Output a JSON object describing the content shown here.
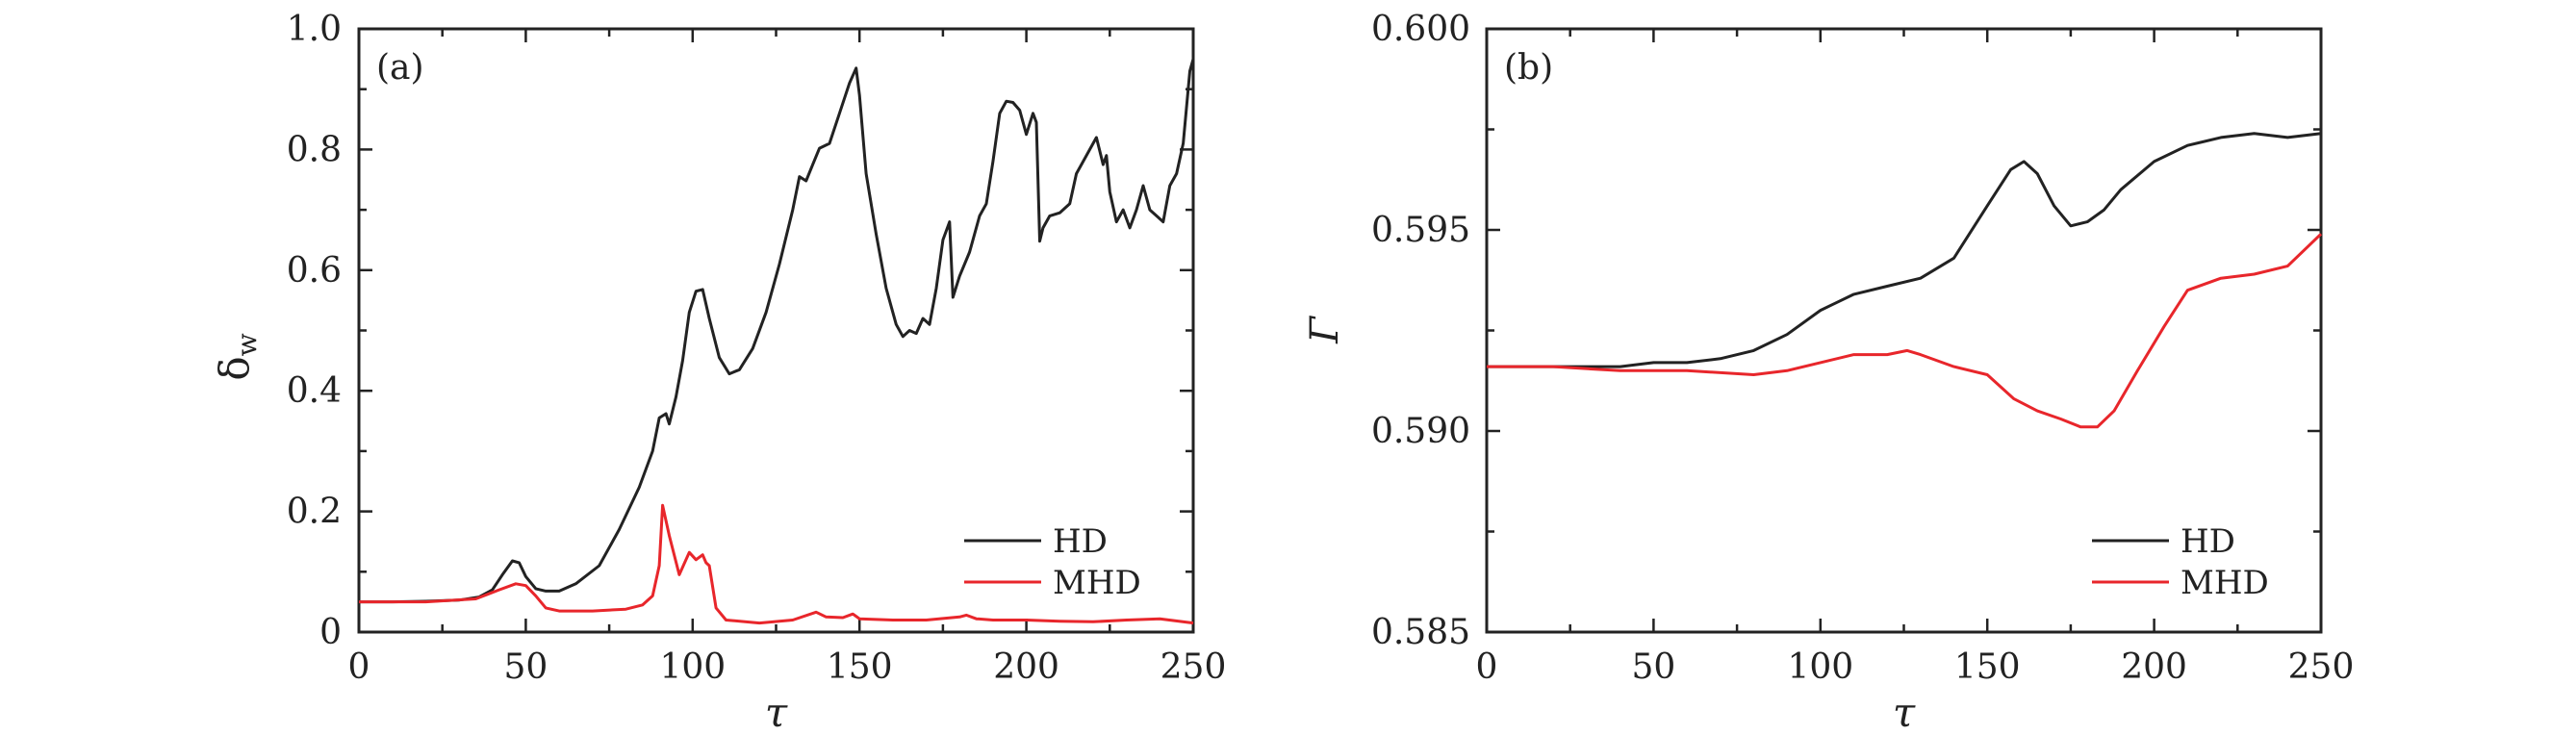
{
  "chart_data": [
    {
      "type": "line",
      "panel_label": "(a)",
      "xlabel": "τ",
      "ylabel_main": "δ",
      "ylabel_sub": "w",
      "xlim": [
        0,
        250
      ],
      "ylim": [
        0,
        1.0
      ],
      "xticks": [
        0,
        50,
        100,
        150,
        200,
        250
      ],
      "xtick_labels": [
        "0",
        "50",
        "100",
        "150",
        "200",
        "250"
      ],
      "yticks": [
        0,
        0.2,
        0.4,
        0.6,
        0.8,
        1.0
      ],
      "ytick_labels": [
        "0",
        "0.2",
        "0.4",
        "0.6",
        "0.8",
        "1.0"
      ],
      "legend_position": "bottom-right",
      "series": [
        {
          "name": "HD",
          "color": "#222222",
          "points": [
            [
              0,
              0.05
            ],
            [
              10,
              0.05
            ],
            [
              20,
              0.051
            ],
            [
              30,
              0.053
            ],
            [
              36,
              0.058
            ],
            [
              40,
              0.07
            ],
            [
              43,
              0.095
            ],
            [
              46,
              0.118
            ],
            [
              48,
              0.115
            ],
            [
              50,
              0.092
            ],
            [
              53,
              0.072
            ],
            [
              56,
              0.068
            ],
            [
              60,
              0.068
            ],
            [
              65,
              0.08
            ],
            [
              72,
              0.11
            ],
            [
              78,
              0.17
            ],
            [
              84,
              0.24
            ],
            [
              88,
              0.3
            ],
            [
              90,
              0.355
            ],
            [
              92,
              0.362
            ],
            [
              93,
              0.345
            ],
            [
              95,
              0.39
            ],
            [
              97,
              0.45
            ],
            [
              99,
              0.53
            ],
            [
              101,
              0.565
            ],
            [
              103,
              0.568
            ],
            [
              105,
              0.52
            ],
            [
              108,
              0.455
            ],
            [
              111,
              0.428
            ],
            [
              114,
              0.435
            ],
            [
              118,
              0.47
            ],
            [
              122,
              0.53
            ],
            [
              126,
              0.61
            ],
            [
              130,
              0.7
            ],
            [
              132,
              0.755
            ],
            [
              134,
              0.748
            ],
            [
              136,
              0.775
            ],
            [
              138,
              0.802
            ],
            [
              141,
              0.81
            ],
            [
              144,
              0.86
            ],
            [
              147,
              0.91
            ],
            [
              149,
              0.935
            ],
            [
              150,
              0.89
            ],
            [
              152,
              0.76
            ],
            [
              155,
              0.66
            ],
            [
              158,
              0.57
            ],
            [
              161,
              0.51
            ],
            [
              163,
              0.49
            ],
            [
              165,
              0.5
            ],
            [
              167,
              0.495
            ],
            [
              169,
              0.52
            ],
            [
              171,
              0.51
            ],
            [
              173,
              0.57
            ],
            [
              175,
              0.65
            ],
            [
              177,
              0.68
            ],
            [
              178,
              0.555
            ],
            [
              180,
              0.59
            ],
            [
              183,
              0.63
            ],
            [
              186,
              0.69
            ],
            [
              188,
              0.71
            ],
            [
              190,
              0.78
            ],
            [
              192,
              0.86
            ],
            [
              194,
              0.88
            ],
            [
              196,
              0.878
            ],
            [
              198,
              0.865
            ],
            [
              200,
              0.825
            ],
            [
              202,
              0.86
            ],
            [
              203,
              0.845
            ],
            [
              204,
              0.648
            ],
            [
              205,
              0.67
            ],
            [
              207,
              0.69
            ],
            [
              210,
              0.695
            ],
            [
              213,
              0.71
            ],
            [
              215,
              0.76
            ],
            [
              217,
              0.78
            ],
            [
              219,
              0.8
            ],
            [
              221,
              0.82
            ],
            [
              223,
              0.775
            ],
            [
              224,
              0.79
            ],
            [
              225,
              0.73
            ],
            [
              227,
              0.68
            ],
            [
              229,
              0.7
            ],
            [
              231,
              0.67
            ],
            [
              233,
              0.7
            ],
            [
              235,
              0.74
            ],
            [
              237,
              0.7
            ],
            [
              239,
              0.69
            ],
            [
              241,
              0.68
            ],
            [
              243,
              0.74
            ],
            [
              245,
              0.76
            ],
            [
              247,
              0.81
            ],
            [
              249,
              0.93
            ],
            [
              250,
              0.95
            ]
          ]
        },
        {
          "name": "MHD",
          "color": "#e8262b",
          "points": [
            [
              0,
              0.05
            ],
            [
              20,
              0.05
            ],
            [
              35,
              0.055
            ],
            [
              42,
              0.07
            ],
            [
              47,
              0.08
            ],
            [
              50,
              0.077
            ],
            [
              53,
              0.06
            ],
            [
              56,
              0.04
            ],
            [
              60,
              0.035
            ],
            [
              70,
              0.035
            ],
            [
              80,
              0.038
            ],
            [
              85,
              0.045
            ],
            [
              88,
              0.06
            ],
            [
              90,
              0.11
            ],
            [
              91,
              0.21
            ],
            [
              93,
              0.16
            ],
            [
              96,
              0.095
            ],
            [
              98,
              0.12
            ],
            [
              99,
              0.132
            ],
            [
              101,
              0.12
            ],
            [
              103,
              0.128
            ],
            [
              104,
              0.115
            ],
            [
              105,
              0.11
            ],
            [
              107,
              0.04
            ],
            [
              110,
              0.02
            ],
            [
              120,
              0.015
            ],
            [
              130,
              0.02
            ],
            [
              137,
              0.033
            ],
            [
              140,
              0.025
            ],
            [
              145,
              0.024
            ],
            [
              148,
              0.03
            ],
            [
              150,
              0.022
            ],
            [
              160,
              0.02
            ],
            [
              170,
              0.02
            ],
            [
              180,
              0.025
            ],
            [
              182,
              0.028
            ],
            [
              185,
              0.022
            ],
            [
              190,
              0.02
            ],
            [
              200,
              0.02
            ],
            [
              210,
              0.018
            ],
            [
              220,
              0.017
            ],
            [
              230,
              0.02
            ],
            [
              240,
              0.022
            ],
            [
              250,
              0.015
            ]
          ]
        }
      ]
    },
    {
      "type": "line",
      "panel_label": "(b)",
      "xlabel": "τ",
      "ylabel": "Γ",
      "xlim": [
        0,
        250
      ],
      "ylim": [
        0.585,
        0.6
      ],
      "xticks": [
        0,
        50,
        100,
        150,
        200,
        250
      ],
      "xtick_labels": [
        "0",
        "50",
        "100",
        "150",
        "200",
        "250"
      ],
      "yticks": [
        0.585,
        0.59,
        0.595,
        0.6
      ],
      "ytick_labels": [
        "0.585",
        "0.590",
        "0.595",
        "0.600"
      ],
      "legend_position": "bottom-right",
      "series": [
        {
          "name": "HD",
          "color": "#222222",
          "points": [
            [
              0,
              0.5916
            ],
            [
              20,
              0.5916
            ],
            [
              40,
              0.5916
            ],
            [
              50,
              0.5917
            ],
            [
              60,
              0.5917
            ],
            [
              70,
              0.5918
            ],
            [
              80,
              0.592
            ],
            [
              90,
              0.5924
            ],
            [
              100,
              0.593
            ],
            [
              110,
              0.5934
            ],
            [
              120,
              0.5936
            ],
            [
              130,
              0.5938
            ],
            [
              140,
              0.5943
            ],
            [
              150,
              0.5956
            ],
            [
              157,
              0.5965
            ],
            [
              161,
              0.5967
            ],
            [
              165,
              0.5964
            ],
            [
              170,
              0.5956
            ],
            [
              175,
              0.5951
            ],
            [
              180,
              0.5952
            ],
            [
              185,
              0.5955
            ],
            [
              190,
              0.596
            ],
            [
              200,
              0.5967
            ],
            [
              210,
              0.5971
            ],
            [
              220,
              0.5973
            ],
            [
              230,
              0.5974
            ],
            [
              240,
              0.5973
            ],
            [
              250,
              0.5974
            ]
          ]
        },
        {
          "name": "MHD",
          "color": "#e8262b",
          "points": [
            [
              0,
              0.5916
            ],
            [
              20,
              0.5916
            ],
            [
              40,
              0.5915
            ],
            [
              60,
              0.5915
            ],
            [
              80,
              0.5914
            ],
            [
              90,
              0.5915
            ],
            [
              100,
              0.5917
            ],
            [
              110,
              0.5919
            ],
            [
              120,
              0.5919
            ],
            [
              126,
              0.592
            ],
            [
              130,
              0.5919
            ],
            [
              140,
              0.5916
            ],
            [
              150,
              0.5914
            ],
            [
              158,
              0.5908
            ],
            [
              165,
              0.5905
            ],
            [
              172,
              0.5903
            ],
            [
              178,
              0.5901
            ],
            [
              183,
              0.5901
            ],
            [
              188,
              0.5905
            ],
            [
              195,
              0.5915
            ],
            [
              203,
              0.5926
            ],
            [
              210,
              0.5935
            ],
            [
              220,
              0.5938
            ],
            [
              230,
              0.5939
            ],
            [
              240,
              0.5941
            ],
            [
              250,
              0.5949
            ]
          ]
        }
      ]
    }
  ]
}
